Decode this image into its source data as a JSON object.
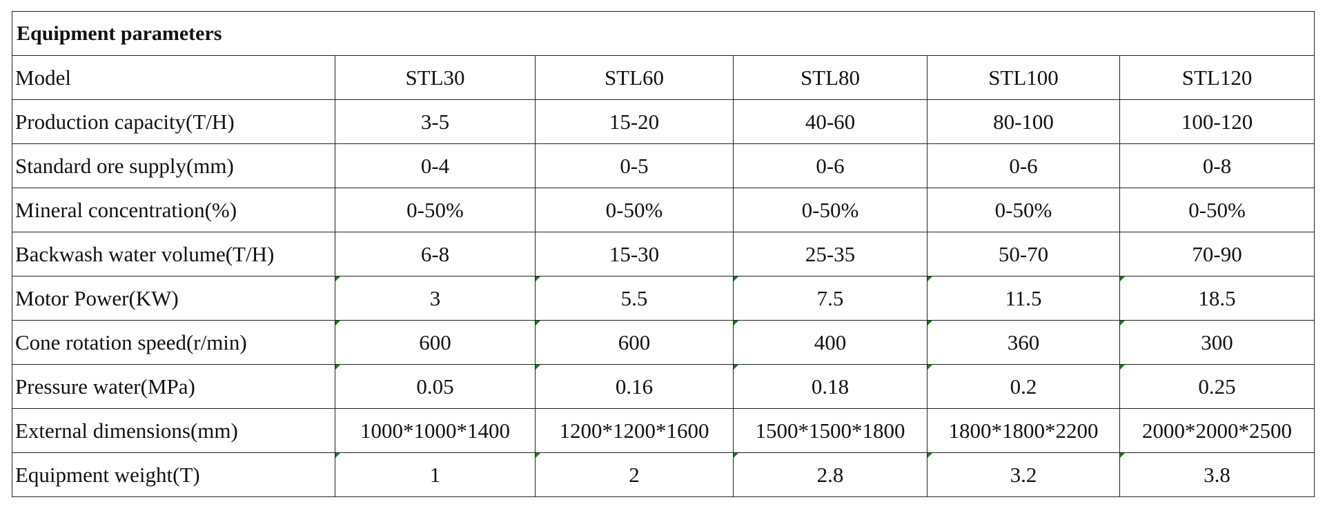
{
  "title": "Equipment parameters",
  "table": {
    "header": [
      "Model",
      "STL30",
      "STL60",
      "STL80",
      "STL100",
      "STL120"
    ],
    "rows": [
      [
        "Production capacity(T/H)",
        "3-5",
        "15-20",
        "40-60",
        "80-100",
        "100-120"
      ],
      [
        "Standard ore supply(mm)",
        "0-4",
        "0-5",
        "0-6",
        "0-6",
        "0-8"
      ],
      [
        "Mineral concentration(%)",
        "0-50%",
        "0-50%",
        "0-50%",
        "0-50%",
        "0-50%"
      ],
      [
        "Backwash water volume(T/H)",
        "6-8",
        "15-30",
        "25-35",
        "50-70",
        "70-90"
      ],
      [
        "Motor Power(KW)",
        "3",
        "5.5",
        "7.5",
        "11.5",
        "18.5"
      ],
      [
        "Cone rotation speed(r/min)",
        "600",
        "600",
        "400",
        "360",
        "300"
      ],
      [
        "Pressure water(MPa)",
        "0.05",
        "0.16",
        "0.18",
        "0.2",
        "0.25"
      ],
      [
        "External dimensions(mm)",
        "1000*1000*1400",
        "1200*1200*1600",
        "1500*1500*1800",
        "1800*1800*2200",
        "2000*2000*2500"
      ],
      [
        "Equipment weight(T)",
        "1",
        "2",
        "2.8",
        "3.2",
        "3.8"
      ]
    ]
  }
}
